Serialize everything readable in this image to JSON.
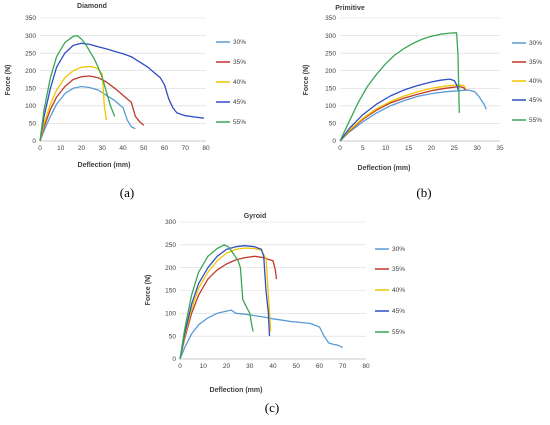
{
  "chart_data": [
    {
      "type": "line",
      "title": "Diamond",
      "caption": "(a)",
      "xlabel": "Deflection (mm)",
      "ylabel": "Force (N)",
      "xlim": [
        0,
        80
      ],
      "ylim": [
        0,
        350
      ],
      "xticks": [
        0,
        10,
        20,
        30,
        40,
        50,
        60,
        70,
        80
      ],
      "yticks": [
        0,
        50,
        100,
        150,
        200,
        250,
        300,
        350
      ],
      "grid": true,
      "legend": "right",
      "series": [
        {
          "name": "30%",
          "color": "#5b9bd5",
          "points": [
            [
              0,
              0
            ],
            [
              2,
              30
            ],
            [
              5,
              70
            ],
            [
              8,
              105
            ],
            [
              12,
              135
            ],
            [
              16,
              150
            ],
            [
              20,
              155
            ],
            [
              24,
              152
            ],
            [
              28,
              145
            ],
            [
              32,
              130
            ],
            [
              36,
              115
            ],
            [
              40,
              95
            ],
            [
              42,
              60
            ],
            [
              44,
              40
            ],
            [
              46,
              35
            ]
          ]
        },
        {
          "name": "35%",
          "color": "#c0392b",
          "points": [
            [
              0,
              0
            ],
            [
              2,
              40
            ],
            [
              5,
              90
            ],
            [
              8,
              125
            ],
            [
              12,
              155
            ],
            [
              16,
              175
            ],
            [
              20,
              183
            ],
            [
              24,
              185
            ],
            [
              28,
              180
            ],
            [
              32,
              168
            ],
            [
              36,
              150
            ],
            [
              40,
              130
            ],
            [
              44,
              110
            ],
            [
              46,
              70
            ],
            [
              48,
              55
            ],
            [
              50,
              45
            ]
          ]
        },
        {
          "name": "40%",
          "color": "#f2c500",
          "points": [
            [
              0,
              0
            ],
            [
              2,
              50
            ],
            [
              5,
              105
            ],
            [
              8,
              145
            ],
            [
              12,
              180
            ],
            [
              16,
              200
            ],
            [
              20,
              210
            ],
            [
              24,
              212
            ],
            [
              26,
              210
            ],
            [
              28,
              205
            ],
            [
              30,
              190
            ],
            [
              31,
              100
            ],
            [
              32,
              60
            ]
          ]
        },
        {
          "name": "45%",
          "color": "#2e4fc4",
          "points": [
            [
              0,
              0
            ],
            [
              2,
              70
            ],
            [
              5,
              150
            ],
            [
              8,
              210
            ],
            [
              12,
              250
            ],
            [
              16,
              272
            ],
            [
              20,
              278
            ],
            [
              24,
              275
            ],
            [
              28,
              268
            ],
            [
              32,
              262
            ],
            [
              36,
              255
            ],
            [
              40,
              248
            ],
            [
              44,
              240
            ],
            [
              48,
              225
            ],
            [
              52,
              210
            ],
            [
              55,
              195
            ],
            [
              58,
              180
            ],
            [
              60,
              160
            ],
            [
              62,
              120
            ],
            [
              64,
              95
            ],
            [
              66,
              80
            ],
            [
              70,
              72
            ],
            [
              75,
              68
            ],
            [
              79,
              65
            ]
          ]
        },
        {
          "name": "55%",
          "color": "#3aa655",
          "points": [
            [
              0,
              0
            ],
            [
              2,
              90
            ],
            [
              5,
              180
            ],
            [
              8,
              240
            ],
            [
              12,
              280
            ],
            [
              16,
              298
            ],
            [
              18,
              300
            ],
            [
              20,
              290
            ],
            [
              22,
              275
            ],
            [
              24,
              255
            ],
            [
              26,
              235
            ],
            [
              28,
              210
            ],
            [
              30,
              180
            ],
            [
              32,
              140
            ],
            [
              34,
              100
            ],
            [
              36,
              70
            ]
          ]
        }
      ]
    },
    {
      "type": "line",
      "title": "Primitive",
      "caption": "(b)",
      "xlabel": "Deflection (mm)",
      "ylabel": "Force (N)",
      "xlim": [
        0,
        35
      ],
      "ylim": [
        0,
        350
      ],
      "xticks": [
        0,
        5,
        10,
        15,
        20,
        25,
        30,
        35
      ],
      "yticks": [
        0,
        50,
        100,
        150,
        200,
        250,
        300,
        350
      ],
      "grid": true,
      "legend": "right",
      "series": [
        {
          "name": "30%",
          "color": "#5b9bd5",
          "points": [
            [
              0,
              0
            ],
            [
              2,
              25
            ],
            [
              5,
              55
            ],
            [
              8,
              80
            ],
            [
              11,
              100
            ],
            [
              14,
              115
            ],
            [
              17,
              127
            ],
            [
              20,
              135
            ],
            [
              23,
              140
            ],
            [
              26,
              143
            ],
            [
              28,
              145
            ],
            [
              29.5,
              140
            ],
            [
              30.5,
              125
            ],
            [
              31.5,
              105
            ],
            [
              32,
              90
            ]
          ]
        },
        {
          "name": "35%",
          "color": "#c0392b",
          "points": [
            [
              0,
              0
            ],
            [
              2,
              28
            ],
            [
              5,
              62
            ],
            [
              8,
              88
            ],
            [
              11,
              108
            ],
            [
              14,
              122
            ],
            [
              17,
              133
            ],
            [
              20,
              143
            ],
            [
              23,
              150
            ],
            [
              25,
              153
            ],
            [
              26,
              155
            ],
            [
              27,
              152
            ],
            [
              27.5,
              145
            ]
          ]
        },
        {
          "name": "40%",
          "color": "#f2c500",
          "points": [
            [
              0,
              0
            ],
            [
              2,
              30
            ],
            [
              5,
              65
            ],
            [
              8,
              92
            ],
            [
              11,
              112
            ],
            [
              14,
              128
            ],
            [
              17,
              140
            ],
            [
              20,
              150
            ],
            [
              23,
              156
            ],
            [
              26,
              160
            ],
            [
              27,
              158
            ],
            [
              27.5,
              150
            ]
          ]
        },
        {
          "name": "45%",
          "color": "#2e4fc4",
          "points": [
            [
              0,
              0
            ],
            [
              2,
              35
            ],
            [
              5,
              75
            ],
            [
              8,
              105
            ],
            [
              11,
              128
            ],
            [
              14,
              145
            ],
            [
              17,
              158
            ],
            [
              20,
              168
            ],
            [
              22,
              173
            ],
            [
              24,
              176
            ],
            [
              25,
              172
            ],
            [
              25.5,
              160
            ],
            [
              26,
              140
            ]
          ]
        },
        {
          "name": "55%",
          "color": "#3aa655",
          "points": [
            [
              0,
              0
            ],
            [
              2,
              55
            ],
            [
              4,
              110
            ],
            [
              6,
              155
            ],
            [
              8,
              190
            ],
            [
              10,
              220
            ],
            [
              12,
              245
            ],
            [
              14,
              263
            ],
            [
              16,
              278
            ],
            [
              18,
              290
            ],
            [
              20,
              298
            ],
            [
              22,
              304
            ],
            [
              24,
              307
            ],
            [
              25.5,
              308
            ],
            [
              25.8,
              250
            ],
            [
              26,
              130
            ],
            [
              26.1,
              80
            ]
          ]
        }
      ]
    },
    {
      "type": "line",
      "title": "Gyroid",
      "caption": "(c)",
      "xlabel": "Deflection (mm)",
      "ylabel": "Force (N)",
      "xlim": [
        0,
        80
      ],
      "ylim": [
        0,
        300
      ],
      "xticks": [
        0,
        10,
        20,
        30,
        40,
        50,
        60,
        70,
        80
      ],
      "yticks": [
        0,
        50,
        100,
        150,
        200,
        250,
        300
      ],
      "grid": true,
      "legend": "right",
      "series": [
        {
          "name": "30%",
          "color": "#5b9bd5",
          "points": [
            [
              0,
              0
            ],
            [
              2,
              25
            ],
            [
              5,
              55
            ],
            [
              8,
              75
            ],
            [
              12,
              90
            ],
            [
              16,
              100
            ],
            [
              20,
              105
            ],
            [
              22,
              107
            ],
            [
              24,
              100
            ],
            [
              28,
              98
            ],
            [
              32,
              95
            ],
            [
              36,
              92
            ],
            [
              40,
              88
            ],
            [
              44,
              85
            ],
            [
              48,
              82
            ],
            [
              52,
              80
            ],
            [
              56,
              78
            ],
            [
              60,
              70
            ],
            [
              62,
              50
            ],
            [
              64,
              35
            ],
            [
              66,
              32
            ],
            [
              68,
              30
            ],
            [
              70,
              25
            ]
          ]
        },
        {
          "name": "35%",
          "color": "#c0392b",
          "points": [
            [
              0,
              0
            ],
            [
              2,
              45
            ],
            [
              5,
              100
            ],
            [
              8,
              140
            ],
            [
              12,
              175
            ],
            [
              16,
              195
            ],
            [
              20,
              208
            ],
            [
              24,
              217
            ],
            [
              28,
              222
            ],
            [
              32,
              225
            ],
            [
              36,
              222
            ],
            [
              38,
              218
            ],
            [
              40,
              215
            ],
            [
              41,
              195
            ],
            [
              41.5,
              175
            ]
          ]
        },
        {
          "name": "40%",
          "color": "#f2c500",
          "points": [
            [
              0,
              0
            ],
            [
              2,
              50
            ],
            [
              5,
              110
            ],
            [
              8,
              155
            ],
            [
              12,
              190
            ],
            [
              16,
              215
            ],
            [
              20,
              232
            ],
            [
              24,
              240
            ],
            [
              28,
              243
            ],
            [
              32,
              242
            ],
            [
              35,
              238
            ],
            [
              37,
              220
            ],
            [
              38,
              140
            ],
            [
              39,
              60
            ]
          ]
        },
        {
          "name": "45%",
          "color": "#2e4fc4",
          "points": [
            [
              0,
              0
            ],
            [
              2,
              55
            ],
            [
              5,
              120
            ],
            [
              8,
              165
            ],
            [
              12,
              200
            ],
            [
              16,
              225
            ],
            [
              20,
              240
            ],
            [
              24,
              246
            ],
            [
              28,
              248
            ],
            [
              32,
              246
            ],
            [
              35,
              240
            ],
            [
              36,
              225
            ],
            [
              37,
              150
            ],
            [
              38,
              100
            ],
            [
              38.5,
              50
            ]
          ]
        },
        {
          "name": "55%",
          "color": "#3aa655",
          "points": [
            [
              0,
              0
            ],
            [
              2,
              65
            ],
            [
              5,
              140
            ],
            [
              8,
              190
            ],
            [
              12,
              225
            ],
            [
              16,
              242
            ],
            [
              19,
              250
            ],
            [
              21,
              245
            ],
            [
              23,
              230
            ],
            [
              25,
              215
            ],
            [
              26,
              200
            ],
            [
              27,
              130
            ],
            [
              29,
              110
            ],
            [
              30,
              100
            ],
            [
              31,
              70
            ],
            [
              31.5,
              60
            ]
          ]
        }
      ]
    }
  ]
}
